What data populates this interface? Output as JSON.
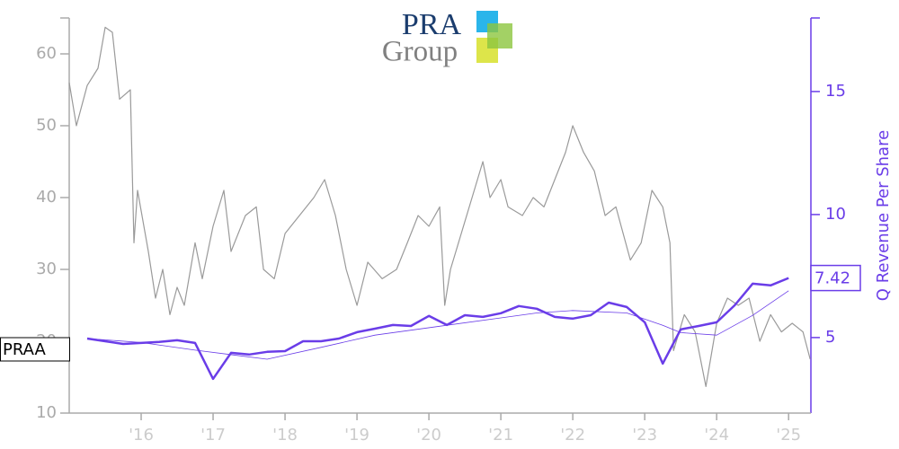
{
  "chart_data": {
    "type": "line",
    "logo": {
      "line1": "PRA",
      "line2": "Group"
    },
    "y2label": "Q Revenue Per Share",
    "xlim": [
      2015.0,
      2025.31
    ],
    "xticks": [
      {
        "value": 2016,
        "label": "'16"
      },
      {
        "value": 2017,
        "label": "'17"
      },
      {
        "value": 2018,
        "label": "'18"
      },
      {
        "value": 2019,
        "label": "'19"
      },
      {
        "value": 2020,
        "label": "'20"
      },
      {
        "value": 2021,
        "label": "'21"
      },
      {
        "value": 2022,
        "label": "'22"
      },
      {
        "value": 2023,
        "label": "'23"
      },
      {
        "value": 2024,
        "label": "'24"
      },
      {
        "value": 2025,
        "label": "'25"
      }
    ],
    "ylim": [
      10,
      65
    ],
    "yticks": [
      10,
      20,
      30,
      40,
      50,
      60
    ],
    "y2lim": [
      1.93,
      17.99
    ],
    "y2ticks": [
      5,
      10,
      15
    ],
    "series": [
      {
        "name": "PRAA",
        "color": "#9a9a9a",
        "x": [
          2015.0,
          2015.1,
          2015.25,
          2015.4,
          2015.5,
          2015.6,
          2015.7,
          2015.85,
          2015.9,
          2015.95,
          2016.1,
          2016.2,
          2016.3,
          2016.4,
          2016.5,
          2016.6,
          2016.75,
          2016.85,
          2017.0,
          2017.15,
          2017.25,
          2017.45,
          2017.6,
          2017.7,
          2017.85,
          2018.0,
          2018.2,
          2018.4,
          2018.55,
          2018.7,
          2018.85,
          2019.0,
          2019.15,
          2019.35,
          2019.55,
          2019.7,
          2019.85,
          2020.0,
          2020.15,
          2020.22,
          2020.3,
          2020.45,
          2020.6,
          2020.75,
          2020.85,
          2021.0,
          2021.1,
          2021.3,
          2021.45,
          2021.6,
          2021.75,
          2021.9,
          2022.0,
          2022.15,
          2022.3,
          2022.45,
          2022.6,
          2022.8,
          2022.95,
          2023.1,
          2023.25,
          2023.35,
          2023.4,
          2023.55,
          2023.7,
          2023.85,
          2024.0,
          2024.15,
          2024.3,
          2024.45,
          2024.6,
          2024.75,
          2024.9,
          2025.05,
          2025.2,
          2025.3
        ],
        "values": [
          56,
          50,
          55.6,
          58,
          63.7,
          63,
          53.7,
          55,
          33.7,
          41,
          32.5,
          26,
          30,
          23.7,
          27.5,
          25,
          33.7,
          28.7,
          36,
          41,
          32.5,
          37.5,
          38.7,
          30,
          28.7,
          35,
          37.5,
          40,
          42.5,
          37.5,
          30,
          25,
          31,
          28.7,
          30,
          33.7,
          37.5,
          36,
          38.7,
          25,
          30,
          35,
          40,
          45,
          40,
          42.5,
          38.7,
          37.5,
          40,
          38.7,
          42.5,
          46.3,
          50,
          46.3,
          43.7,
          37.5,
          38.7,
          31.3,
          33.7,
          41,
          38.7,
          33.7,
          18.7,
          23.7,
          21.3,
          13.7,
          22.5,
          26,
          25,
          26,
          20,
          23.7,
          21.3,
          22.5,
          21.3,
          17.5
        ]
      },
      {
        "color": "#6a3de8",
        "axis": "y2",
        "width": 2.5,
        "x": [
          2015.25,
          2015.5,
          2015.75,
          2016.0,
          2016.25,
          2016.5,
          2016.75,
          2017.0,
          2017.25,
          2017.5,
          2017.75,
          2018.0,
          2018.25,
          2018.5,
          2018.75,
          2019.0,
          2019.25,
          2019.5,
          2019.75,
          2020.0,
          2020.25,
          2020.5,
          2020.75,
          2021.0,
          2021.25,
          2021.5,
          2021.75,
          2022.0,
          2022.25,
          2022.5,
          2022.75,
          2023.0,
          2023.25,
          2023.5,
          2023.75,
          2024.0,
          2024.25,
          2024.5,
          2024.75,
          2025.0
        ],
        "values": [
          4.96,
          4.85,
          4.74,
          4.78,
          4.82,
          4.89,
          4.78,
          3.32,
          4.38,
          4.31,
          4.42,
          4.45,
          4.85,
          4.85,
          4.96,
          5.22,
          5.36,
          5.51,
          5.47,
          5.88,
          5.51,
          5.91,
          5.84,
          5.99,
          6.28,
          6.17,
          5.84,
          5.77,
          5.91,
          6.42,
          6.24,
          5.62,
          3.94,
          5.33,
          5.47,
          5.62,
          6.31,
          7.19,
          7.12,
          7.42
        ]
      },
      {
        "color": "#6a3de8",
        "axis": "y2",
        "width": 0.8,
        "x": [
          2015.25,
          2016.0,
          2016.75,
          2017.75,
          2018.5,
          2019.25,
          2020.25,
          2021.0,
          2021.5,
          2022.0,
          2022.75,
          2023.25,
          2023.5,
          2024.0,
          2024.5,
          2025.0
        ],
        "values": [
          4.96,
          4.8,
          4.49,
          4.12,
          4.6,
          5.1,
          5.5,
          5.8,
          6.0,
          6.1,
          6.0,
          5.5,
          5.2,
          5.1,
          5.9,
          6.9
        ]
      }
    ]
  }
}
